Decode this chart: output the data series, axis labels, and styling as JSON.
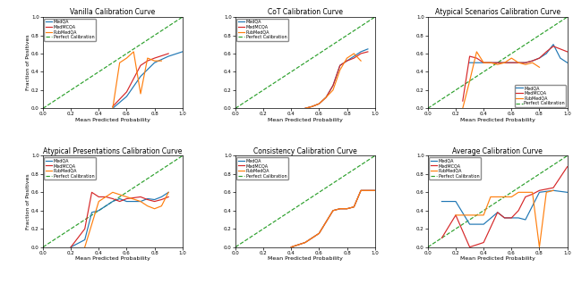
{
  "titles": [
    "Vanilla Calibration Curve",
    "CoT Calibration Curve",
    "Atypical Scenarios Calibration Curve",
    "Atypical Presentations Calibration Curve",
    "Consistency Calibration Curve",
    "Average Calibration Curve"
  ],
  "colors": {
    "MedQA": "#1f77b4",
    "MedMCQA": "#d62728",
    "PubMedQA": "#ff7f0e",
    "Perfect Calibration": "#2ca02c"
  },
  "plots": {
    "Vanilla": {
      "MedQA": {
        "x": [
          0.5,
          0.6,
          0.7,
          0.8,
          0.9,
          1.0
        ],
        "y": [
          0.0,
          0.13,
          0.35,
          0.5,
          0.57,
          0.62
        ]
      },
      "MedMCQA": {
        "x": [
          0.5,
          0.6,
          0.7,
          0.75,
          0.8,
          0.9
        ],
        "y": [
          0.02,
          0.18,
          0.47,
          0.52,
          0.55,
          0.6
        ]
      },
      "PubMedQA": {
        "x": [
          0.5,
          0.55,
          0.6,
          0.65,
          0.7,
          0.75,
          0.8,
          0.85
        ],
        "y": [
          0.0,
          0.5,
          0.55,
          0.62,
          0.16,
          0.55,
          0.52,
          0.52
        ]
      }
    },
    "CoT": {
      "MedQA": {
        "x": [
          0.5,
          0.55,
          0.6,
          0.65,
          0.7,
          0.75,
          0.8,
          0.85,
          0.9,
          0.95
        ],
        "y": [
          0.0,
          0.02,
          0.05,
          0.12,
          0.25,
          0.47,
          0.52,
          0.57,
          0.62,
          0.65
        ]
      },
      "MedMCQA": {
        "x": [
          0.5,
          0.55,
          0.6,
          0.65,
          0.7,
          0.75,
          0.8,
          0.85,
          0.9,
          0.95
        ],
        "y": [
          0.0,
          0.02,
          0.05,
          0.12,
          0.25,
          0.47,
          0.52,
          0.55,
          0.6,
          0.62
        ]
      },
      "PubMedQA": {
        "x": [
          0.5,
          0.55,
          0.6,
          0.65,
          0.7,
          0.75,
          0.8,
          0.85,
          0.9
        ],
        "y": [
          0.0,
          0.02,
          0.05,
          0.12,
          0.2,
          0.42,
          0.55,
          0.6,
          0.52
        ]
      }
    },
    "AtypicalScenarios": {
      "MedQA": {
        "x": [
          0.3,
          0.35,
          0.4,
          0.45,
          0.5,
          0.55,
          0.6,
          0.65,
          0.7,
          0.75,
          0.8,
          0.85,
          0.9,
          0.95,
          1.0
        ],
        "y": [
          0.5,
          0.5,
          0.5,
          0.5,
          0.5,
          0.5,
          0.5,
          0.5,
          0.5,
          0.52,
          0.55,
          0.6,
          0.7,
          0.55,
          0.5
        ]
      },
      "MedMCQA": {
        "x": [
          0.25,
          0.3,
          0.35,
          0.4,
          0.45,
          0.5,
          0.55,
          0.6,
          0.65,
          0.7,
          0.75,
          0.8,
          0.85,
          0.9,
          0.95,
          1.0
        ],
        "y": [
          0.08,
          0.57,
          0.55,
          0.5,
          0.5,
          0.5,
          0.5,
          0.5,
          0.5,
          0.5,
          0.52,
          0.55,
          0.62,
          0.68,
          0.65,
          0.62
        ]
      },
      "PubMedQA": {
        "x": [
          0.25,
          0.3,
          0.35,
          0.4,
          0.45,
          0.5,
          0.55,
          0.6,
          0.65,
          0.7,
          0.75,
          0.8
        ],
        "y": [
          0.0,
          0.3,
          0.62,
          0.5,
          0.5,
          0.48,
          0.5,
          0.55,
          0.5,
          0.48,
          0.5,
          0.45
        ]
      }
    },
    "AtypicalPresentations": {
      "MedQA": {
        "x": [
          0.2,
          0.3,
          0.35,
          0.4,
          0.5,
          0.55,
          0.6,
          0.7,
          0.75,
          0.8,
          0.85,
          0.9
        ],
        "y": [
          0.0,
          0.08,
          0.38,
          0.4,
          0.5,
          0.53,
          0.5,
          0.5,
          0.53,
          0.52,
          0.55,
          0.6
        ]
      },
      "MedMCQA": {
        "x": [
          0.2,
          0.3,
          0.35,
          0.4,
          0.45,
          0.5,
          0.55,
          0.6,
          0.7,
          0.75,
          0.8,
          0.85,
          0.9
        ],
        "y": [
          0.0,
          0.2,
          0.6,
          0.55,
          0.55,
          0.53,
          0.5,
          0.53,
          0.55,
          0.52,
          0.5,
          0.52,
          0.55
        ]
      },
      "PubMedQA": {
        "x": [
          0.3,
          0.4,
          0.5,
          0.6,
          0.7,
          0.75,
          0.8,
          0.85,
          0.9
        ],
        "y": [
          0.0,
          0.5,
          0.6,
          0.55,
          0.5,
          0.45,
          0.42,
          0.45,
          0.6
        ]
      }
    },
    "Consistency": {
      "MedQA": {
        "x": [
          0.4,
          0.5,
          0.55,
          0.6,
          0.7,
          0.75,
          0.8,
          0.85,
          0.9,
          0.95,
          1.0
        ],
        "y": [
          0.0,
          0.05,
          0.1,
          0.15,
          0.4,
          0.42,
          0.42,
          0.44,
          0.62,
          0.62,
          0.62
        ]
      },
      "MedMCQA": {
        "x": [
          0.4,
          0.5,
          0.55,
          0.6,
          0.7,
          0.75,
          0.8,
          0.85,
          0.9,
          0.95,
          1.0
        ],
        "y": [
          0.0,
          0.05,
          0.1,
          0.15,
          0.4,
          0.42,
          0.42,
          0.44,
          0.62,
          0.62,
          0.62
        ]
      },
      "PubMedQA": {
        "x": [
          0.4,
          0.5,
          0.55,
          0.6,
          0.7,
          0.75,
          0.8,
          0.85,
          0.9,
          0.95,
          1.0
        ],
        "y": [
          0.0,
          0.05,
          0.1,
          0.15,
          0.4,
          0.42,
          0.42,
          0.44,
          0.62,
          0.62,
          0.62
        ]
      }
    },
    "Average": {
      "MedQA": {
        "x": [
          0.1,
          0.2,
          0.3,
          0.4,
          0.5,
          0.55,
          0.6,
          0.65,
          0.7,
          0.8,
          0.9,
          1.0
        ],
        "y": [
          0.5,
          0.5,
          0.25,
          0.25,
          0.38,
          0.32,
          0.32,
          0.32,
          0.3,
          0.6,
          0.62,
          0.6
        ]
      },
      "MedMCQA": {
        "x": [
          0.1,
          0.2,
          0.3,
          0.4,
          0.5,
          0.55,
          0.6,
          0.65,
          0.7,
          0.75,
          0.8,
          0.9,
          1.0
        ],
        "y": [
          0.1,
          0.35,
          0.0,
          0.05,
          0.38,
          0.32,
          0.32,
          0.4,
          0.55,
          0.58,
          0.62,
          0.65,
          0.88
        ]
      },
      "PubMedQA": {
        "x": [
          0.2,
          0.3,
          0.4,
          0.45,
          0.5,
          0.55,
          0.6,
          0.65,
          0.7,
          0.75,
          0.8,
          0.85,
          0.9
        ],
        "y": [
          0.35,
          0.35,
          0.35,
          0.55,
          0.55,
          0.55,
          0.55,
          0.6,
          0.6,
          0.6,
          0.0,
          0.6,
          0.62
        ]
      }
    }
  },
  "xlabel": "Mean Predicted Probability",
  "ylabel": "Fraction of Positives",
  "xlim": [
    0.0,
    1.0
  ],
  "ylim": [
    0.0,
    1.0
  ],
  "plot_keys": [
    "Vanilla",
    "CoT",
    "AtypicalScenarios",
    "AtypicalPresentations",
    "Consistency",
    "Average"
  ],
  "datasets": [
    "MedQA",
    "MedMCQA",
    "PubMedQA"
  ],
  "legend_positions": [
    "upper left",
    "upper left",
    "lower right",
    "upper left",
    "upper left",
    "upper left"
  ]
}
